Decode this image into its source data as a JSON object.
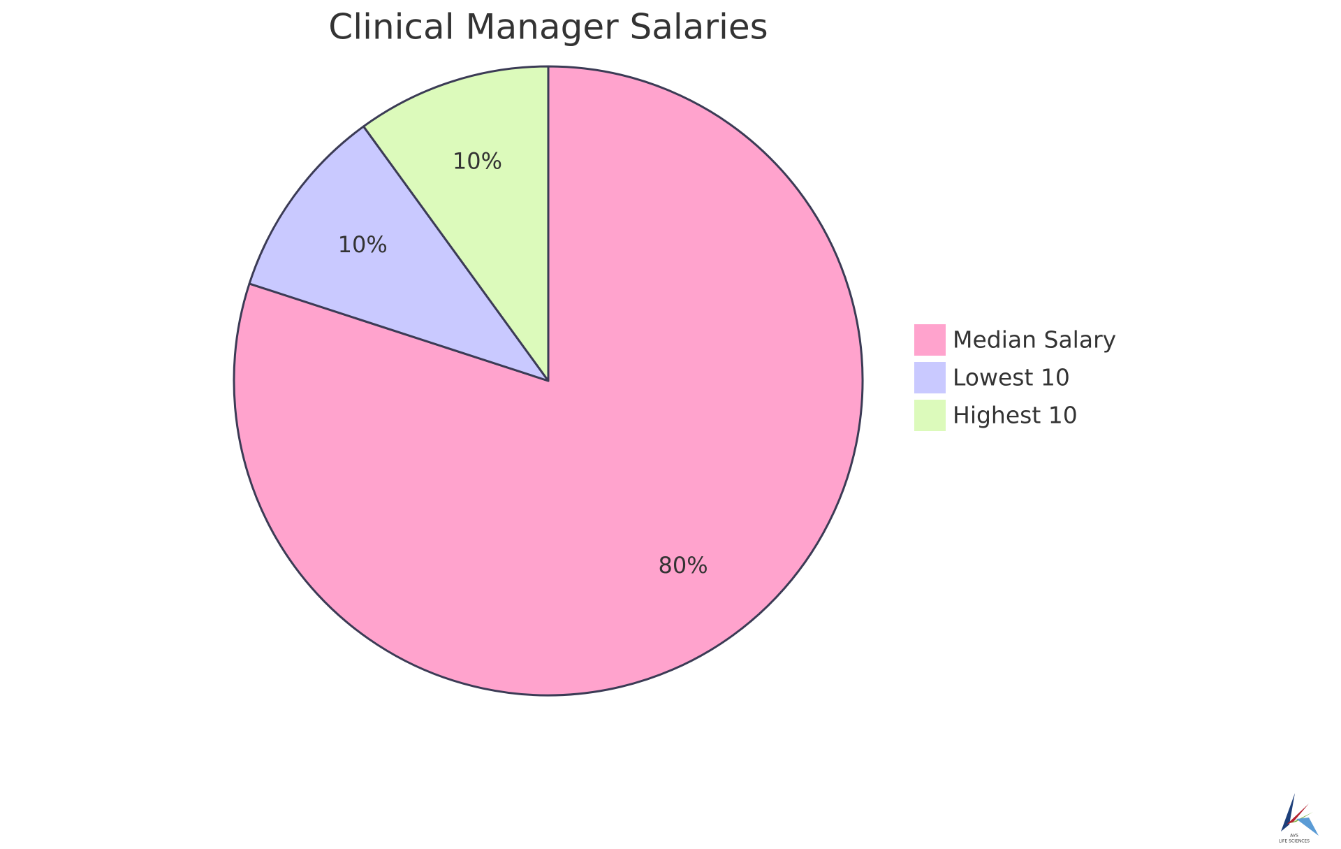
{
  "chart_data": {
    "type": "pie",
    "title": "Clinical Manager Salaries",
    "categories": [
      "Median Salary",
      "Lowest 10",
      "Highest 10"
    ],
    "values": [
      80,
      10,
      10
    ],
    "value_labels": [
      "80%",
      "10%",
      "10%"
    ],
    "colors": [
      "#ffa3cd",
      "#c9c9ff",
      "#dcfabb"
    ],
    "legend": "right"
  },
  "logo": {
    "line1": "AVS",
    "line2": "LIFE SCIENCES"
  }
}
